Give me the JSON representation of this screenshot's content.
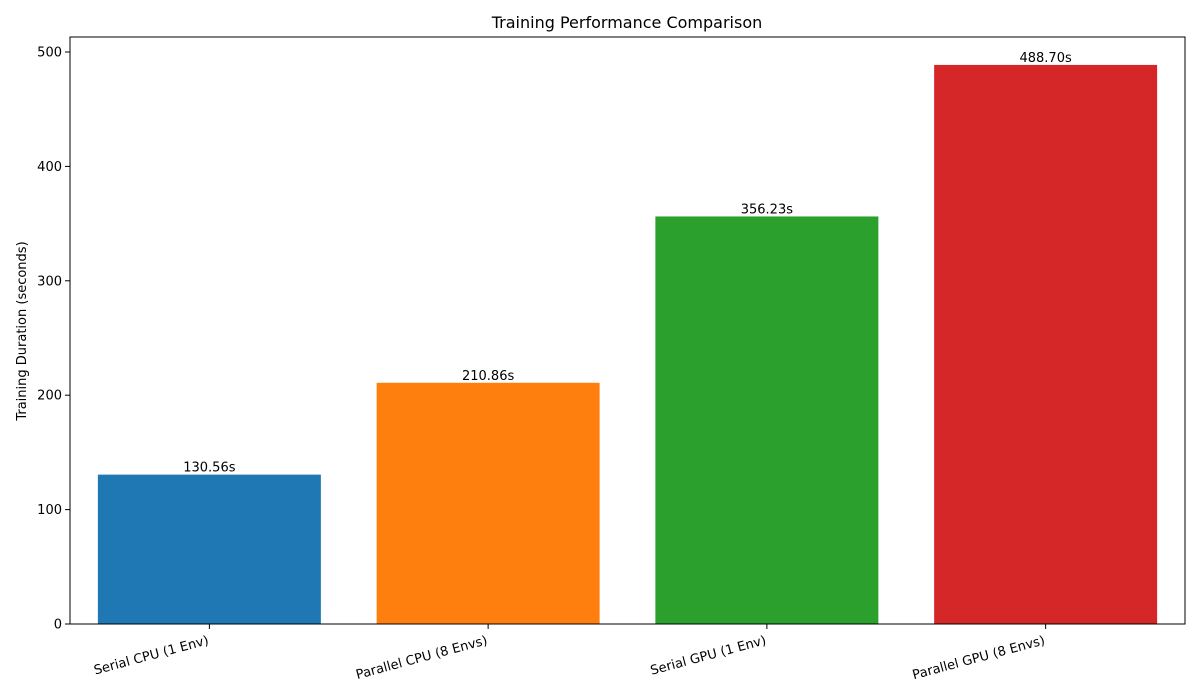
{
  "chart_data": {
    "type": "bar",
    "title": "Training Performance Comparison",
    "xlabel": "",
    "ylabel": "Training Duration (seconds)",
    "categories": [
      "Serial CPU (1 Env)",
      "Parallel CPU (8 Envs)",
      "Serial GPU (1 Env)",
      "Parallel GPU (8 Envs)"
    ],
    "values": [
      130.56,
      210.86,
      356.23,
      488.7
    ],
    "data_labels": [
      "130.56s",
      "210.86s",
      "356.23s",
      "488.70s"
    ],
    "colors": [
      "#1f77b4",
      "#ff7f0e",
      "#2ca02c",
      "#d62728"
    ],
    "ylim": [
      0,
      513.1
    ],
    "yticks": [
      0,
      100,
      200,
      300,
      400,
      500
    ],
    "ytick_labels": [
      "0",
      "100",
      "200",
      "300",
      "400",
      "500"
    ],
    "xtick_rotation_deg": -15,
    "grid": false,
    "legend": "none"
  }
}
